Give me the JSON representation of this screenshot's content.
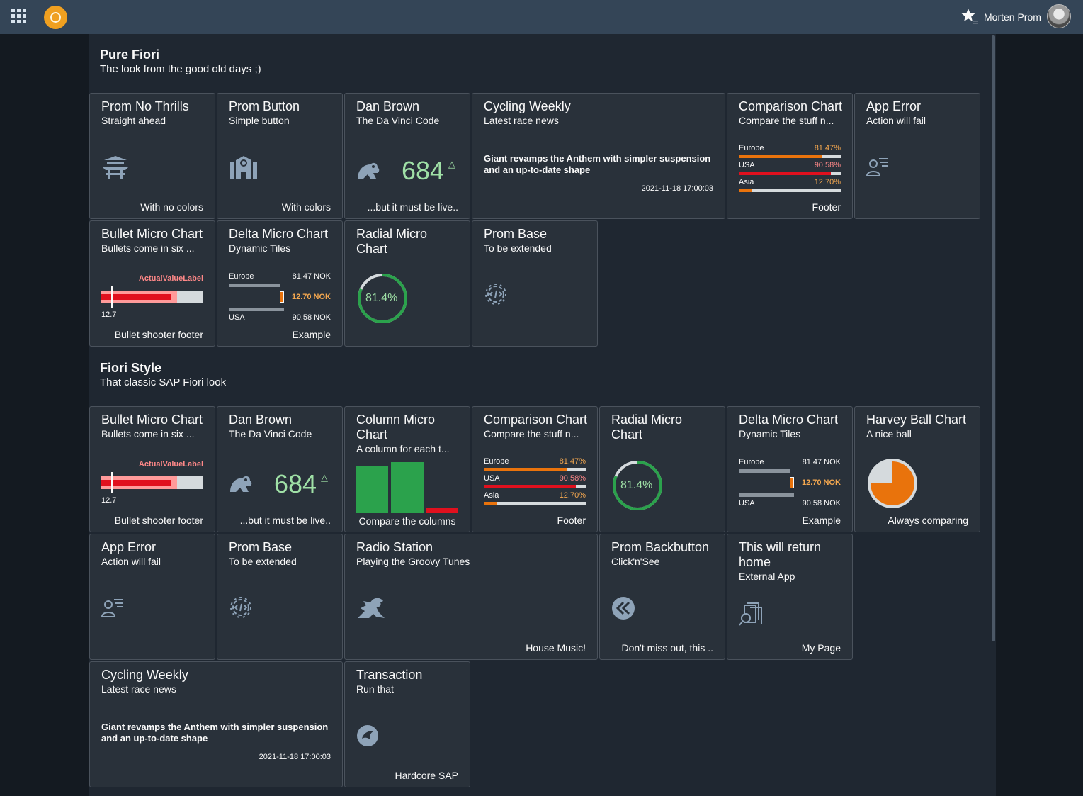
{
  "shell": {
    "user_name": "Morten Prom",
    "accent": "#f0a020"
  },
  "groups": [
    {
      "title": "Pure Fiori",
      "subtitle": "The look from the good old days ;)"
    },
    {
      "title": "Fiori Style",
      "subtitle": "That classic SAP Fiori look"
    }
  ],
  "g1": {
    "no_thrills": {
      "title": "Prom No Thrills",
      "subtitle": "Straight ahead",
      "footer": "With no colors",
      "icon": "pagoda-icon"
    },
    "button": {
      "title": "Prom Button",
      "subtitle": "Simple button",
      "footer": "With colors",
      "icon": "building-icon"
    },
    "dan_brown": {
      "title": "Dan Brown",
      "subtitle": "The Da Vinci Code",
      "value": "684",
      "trend": "△",
      "footer": "...but it must be live.."
    },
    "cycling": {
      "title": "Cycling Weekly",
      "subtitle": "Latest race news",
      "headline": "Giant revamps the Anthem with simpler suspension and an up-to-date shape",
      "date": "2021-11-18 17:00:03"
    },
    "comparison": {
      "title": "Comparison Chart",
      "subtitle": "Compare the stuff n...",
      "footer": "Footer",
      "rows": [
        {
          "label": "Europe",
          "value": "81.47%",
          "pct": 81.47,
          "color": "#e9730c",
          "vcolor": "#f5a84f"
        },
        {
          "label": "USA",
          "value": "90.58%",
          "pct": 90.58,
          "color": "#e0101e",
          "vcolor": "#ff8888"
        },
        {
          "label": "Asia",
          "value": "12.70%",
          "pct": 12.7,
          "color": "#e9730c",
          "vcolor": "#f5a84f"
        }
      ]
    },
    "app_error": {
      "title": "App Error",
      "subtitle": "Action will fail",
      "icon": "user-list-icon"
    },
    "bullet": {
      "title": "Bullet Micro Chart",
      "subtitle": "Bullets come in six ...",
      "label": "ActualValueLabel",
      "min": "12.7",
      "footer": "Bullet shooter footer",
      "actual_pct": 0.68,
      "range_pct": 0.74,
      "target_pct": 0.1
    },
    "delta": {
      "title": "Delta Micro Chart",
      "subtitle": "Dynamic Tiles",
      "label1": "Europe",
      "value1": "81.47 NOK",
      "delta": "12.70 NOK",
      "label2": "USA",
      "value2": "90.58 NOK",
      "footer": "Example"
    },
    "radial": {
      "title": "Radial Micro Chart",
      "value": "81.4%",
      "pct": 81.4
    },
    "prom_base": {
      "title": "Prom Base",
      "subtitle": "To be extended",
      "icon": "gear-code-icon"
    }
  },
  "g2": {
    "bullet": {
      "title": "Bullet Micro Chart",
      "subtitle": "Bullets come in six ...",
      "label": "ActualValueLabel",
      "min": "12.7",
      "footer": "Bullet shooter footer",
      "actual_pct": 0.68,
      "range_pct": 0.74,
      "target_pct": 0.1
    },
    "dan_brown": {
      "title": "Dan Brown",
      "subtitle": "The Da Vinci Code",
      "value": "684",
      "trend": "△",
      "footer": "...but it must be live.."
    },
    "column": {
      "title": "Column Micro Chart",
      "subtitle": "A column for each t...",
      "caption": "Compare the columns",
      "values": [
        0.92,
        1.0,
        0.1
      ],
      "colors": [
        "#2ba24c",
        "#2ba24c",
        "#e0101e"
      ]
    },
    "comparison": {
      "title": "Comparison Chart",
      "subtitle": "Compare the stuff n...",
      "footer": "Footer",
      "rows": [
        {
          "label": "Europe",
          "value": "81.47%",
          "pct": 81.47,
          "color": "#e9730c",
          "vcolor": "#f5a84f"
        },
        {
          "label": "USA",
          "value": "90.58%",
          "pct": 90.58,
          "color": "#e0101e",
          "vcolor": "#ff8888"
        },
        {
          "label": "Asia",
          "value": "12.70%",
          "pct": 12.7,
          "color": "#e9730c",
          "vcolor": "#f5a84f"
        }
      ]
    },
    "radial": {
      "title": "Radial Micro Chart",
      "value": "81.4%",
      "pct": 81.4
    },
    "delta": {
      "title": "Delta Micro Chart",
      "subtitle": "Dynamic Tiles",
      "label1": "Europe",
      "value1": "81.47 NOK",
      "delta": "12.70 NOK",
      "label2": "USA",
      "value2": "90.58 NOK",
      "footer": "Example"
    },
    "harvey": {
      "title": "Harvey Ball Chart",
      "subtitle": "A nice ball",
      "footer": "Always comparing",
      "pct": 75
    },
    "app_error": {
      "title": "App Error",
      "subtitle": "Action will fail",
      "icon": "user-list-icon"
    },
    "prom_base": {
      "title": "Prom Base",
      "subtitle": "To be extended",
      "icon": "gear-code-icon"
    },
    "radio": {
      "title": "Radio Station",
      "subtitle": "Playing the Groovy Tunes",
      "footer": "House Music!",
      "icon": "dragon-icon"
    },
    "backbutton": {
      "title": "Prom Backbutton",
      "subtitle": "Click'n'See",
      "footer": "Don't miss out, this ..",
      "icon": "double-back-icon"
    },
    "return_home": {
      "title": "This will return home",
      "subtitle": "External App",
      "footer": "My Page",
      "icon": "search-docs-icon"
    },
    "cycling": {
      "title": "Cycling Weekly",
      "subtitle": "Latest race news",
      "headline": "Giant revamps the Anthem with simpler suspension and an up-to-date shape",
      "date": "2021-11-18 17:00:03"
    },
    "transaction": {
      "title": "Transaction",
      "subtitle": "Run that",
      "footer": "Hardcore SAP",
      "icon": "bird-icon"
    }
  }
}
